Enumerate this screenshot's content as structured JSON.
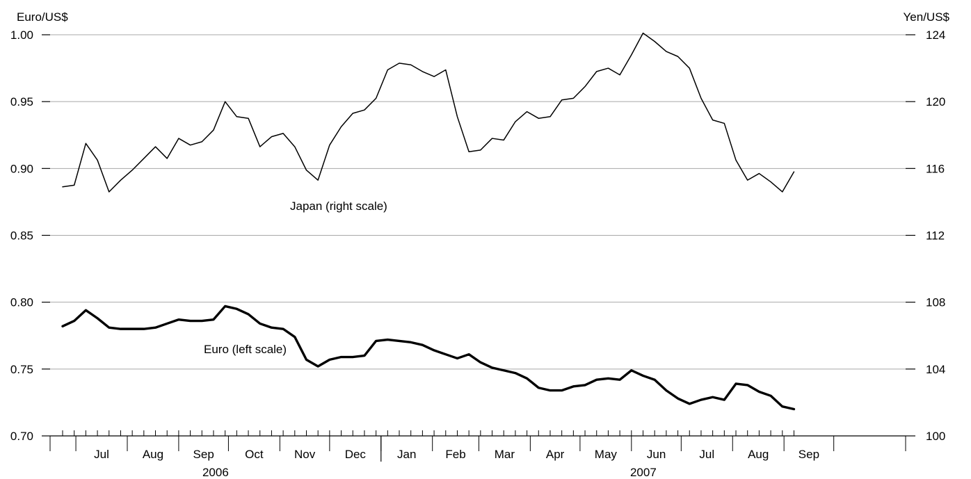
{
  "chart_data": {
    "type": "line",
    "title": "",
    "left_axis_label": "Euro/US$",
    "right_axis_label": "Yen/US$",
    "left_ylim": [
      0.7,
      1.0
    ],
    "left_ticks": [
      "0.70",
      "0.75",
      "0.80",
      "0.85",
      "0.90",
      "0.95",
      "1.00"
    ],
    "right_ylim": [
      100,
      124
    ],
    "right_ticks": [
      "100",
      "104",
      "108",
      "112",
      "116",
      "120",
      "124"
    ],
    "grid": true,
    "x_start": "2006-06-23",
    "x_step_days": 7,
    "month_labels": [
      "Jul",
      "Aug",
      "Sep",
      "Oct",
      "Nov",
      "Dec",
      "Jan",
      "Feb",
      "Mar",
      "Apr",
      "May",
      "Jun",
      "Jul",
      "Aug",
      "Sep"
    ],
    "year_labels": [
      "2006",
      "2007"
    ],
    "series": [
      {
        "name": "Japan (right scale)",
        "axis": "right",
        "values": [
          114.9,
          115.0,
          117.5,
          116.5,
          114.6,
          115.3,
          115.9,
          116.6,
          117.3,
          116.6,
          117.8,
          117.4,
          117.6,
          118.3,
          120.0,
          119.1,
          119.0,
          117.3,
          117.9,
          118.1,
          117.3,
          115.9,
          115.3,
          117.4,
          118.5,
          119.3,
          119.5,
          120.2,
          121.9,
          122.3,
          122.2,
          121.8,
          121.5,
          121.9,
          119.1,
          117.0,
          117.1,
          117.8,
          117.7,
          118.8,
          119.4,
          119.0,
          119.1,
          120.1,
          120.2,
          120.9,
          121.8,
          122.0,
          121.6,
          122.8,
          124.1,
          123.6,
          123.0,
          122.7,
          122.0,
          120.2,
          118.9,
          118.7,
          116.5,
          115.3,
          115.7,
          115.2,
          114.6,
          115.8
        ]
      },
      {
        "name": "Euro (left scale)",
        "axis": "left",
        "values": [
          0.782,
          0.786,
          0.794,
          0.788,
          0.781,
          0.78,
          0.78,
          0.78,
          0.781,
          0.784,
          0.787,
          0.786,
          0.786,
          0.787,
          0.797,
          0.795,
          0.791,
          0.784,
          0.781,
          0.78,
          0.774,
          0.757,
          0.752,
          0.757,
          0.759,
          0.759,
          0.76,
          0.771,
          0.772,
          0.771,
          0.77,
          0.768,
          0.764,
          0.761,
          0.758,
          0.761,
          0.755,
          0.751,
          0.749,
          0.747,
          0.743,
          0.736,
          0.734,
          0.734,
          0.737,
          0.738,
          0.742,
          0.743,
          0.742,
          0.749,
          0.745,
          0.742,
          0.734,
          0.728,
          0.724,
          0.727,
          0.729,
          0.727,
          0.739,
          0.738,
          0.733,
          0.73,
          0.722,
          0.72
        ]
      }
    ]
  }
}
